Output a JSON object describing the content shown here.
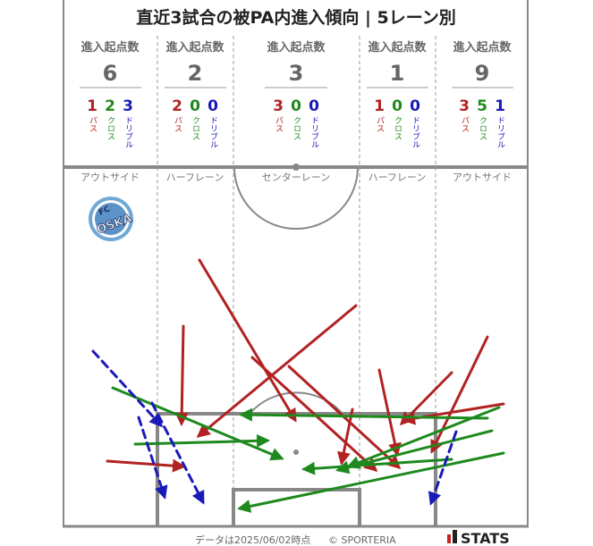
{
  "title": "直近3試合の被PA内進入傾向 | 5レーン別",
  "header_label": "進入起点数",
  "type_labels": {
    "pass": "パス",
    "cross": "クロス",
    "dribble": "ドリブル"
  },
  "colors": {
    "pass": "#b22222",
    "cross": "#1e8a1e",
    "dribble": "#1a1ab8",
    "line": "#888888",
    "lane": "#999999"
  },
  "team_logo_text": "FC Osaka",
  "footer": {
    "date": "データは2025/06/02時点",
    "copyright": "© SPORTERIA",
    "brand": "STATS"
  },
  "chart_data": {
    "type": "lane-summary-with-arrows",
    "lanes": [
      {
        "name": "アウトサイド",
        "total": 6,
        "pass": 1,
        "cross": 2,
        "dribble": 3
      },
      {
        "name": "ハーフレーン",
        "total": 2,
        "pass": 2,
        "cross": 0,
        "dribble": 0
      },
      {
        "name": "センターレーン",
        "total": 3,
        "pass": 3,
        "cross": 0,
        "dribble": 0
      },
      {
        "name": "ハーフレーン",
        "total": 1,
        "pass": 1,
        "cross": 0,
        "dribble": 0
      },
      {
        "name": "アウトサイド",
        "total": 9,
        "pass": 3,
        "cross": 5,
        "dribble": 1
      }
    ],
    "arrows": [
      {
        "type": "pass",
        "from": [
          223,
          291
        ],
        "to": [
          330,
          470
        ]
      },
      {
        "type": "pass",
        "from": [
          205,
          365
        ],
        "to": [
          203,
          474
        ]
      },
      {
        "type": "pass",
        "from": [
          120,
          516
        ],
        "to": [
          205,
          522
        ]
      },
      {
        "type": "pass",
        "from": [
          398,
          342
        ],
        "to": [
          222,
          488
        ]
      },
      {
        "type": "pass",
        "from": [
          282,
          400
        ],
        "to": [
          420,
          526
        ]
      },
      {
        "type": "pass",
        "from": [
          323,
          410
        ],
        "to": [
          446,
          523
        ]
      },
      {
        "type": "pass",
        "from": [
          394,
          458
        ],
        "to": [
          382,
          518
        ]
      },
      {
        "type": "pass",
        "from": [
          424,
          414
        ],
        "to": [
          444,
          508
        ]
      },
      {
        "type": "pass",
        "from": [
          545,
          377
        ],
        "to": [
          483,
          505
        ]
      },
      {
        "type": "pass",
        "from": [
          505,
          417
        ],
        "to": [
          449,
          474
        ]
      },
      {
        "type": "pass",
        "from": [
          563,
          452
        ],
        "to": [
          452,
          470
        ]
      },
      {
        "type": "cross",
        "from": [
          126,
          434
        ],
        "to": [
          315,
          513
        ]
      },
      {
        "type": "cross",
        "from": [
          151,
          497
        ],
        "to": [
          299,
          493
        ]
      },
      {
        "type": "cross",
        "from": [
          545,
          468
        ],
        "to": [
          270,
          464
        ]
      },
      {
        "type": "cross",
        "from": [
          550,
          482
        ],
        "to": [
          378,
          526
        ]
      },
      {
        "type": "cross",
        "from": [
          558,
          456
        ],
        "to": [
          390,
          522
        ]
      },
      {
        "type": "cross",
        "from": [
          505,
          514
        ],
        "to": [
          340,
          525
        ]
      },
      {
        "type": "cross",
        "from": [
          563,
          507
        ],
        "to": [
          268,
          569
        ]
      },
      {
        "type": "dribble",
        "from": [
          104,
          393
        ],
        "to": [
          180,
          476
        ]
      },
      {
        "type": "dribble",
        "from": [
          155,
          467
        ],
        "to": [
          184,
          556
        ]
      },
      {
        "type": "dribble",
        "from": [
          170,
          451
        ],
        "to": [
          227,
          562
        ]
      },
      {
        "type": "dribble",
        "from": [
          510,
          483
        ],
        "to": [
          482,
          563
        ]
      }
    ]
  }
}
